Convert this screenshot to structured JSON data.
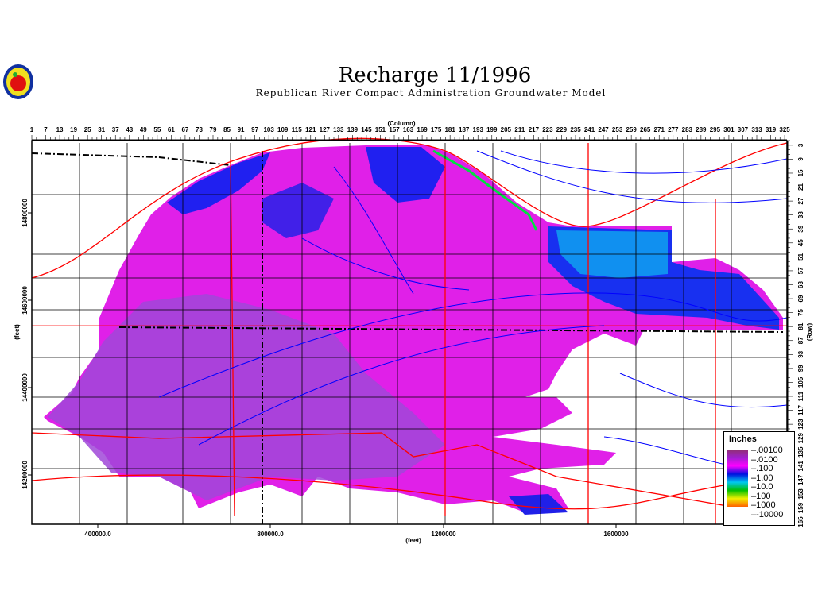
{
  "header": {
    "title": "Recharge 11/1996",
    "subtitle": "Republican River Compact Administration Groundwater Model",
    "logo_icon": "apple-seal-logo"
  },
  "map": {
    "column_axis_title": "(Column)",
    "row_axis_title": "(Row)",
    "x_axis_title": "(feet)",
    "y_axis_title": "(feet)",
    "column_ticks": [
      1,
      7,
      13,
      19,
      25,
      31,
      37,
      43,
      49,
      55,
      61,
      67,
      73,
      79,
      85,
      91,
      97,
      103,
      109,
      115,
      121,
      127,
      133,
      139,
      145,
      151,
      157,
      163,
      169,
      175,
      181,
      187,
      193,
      199,
      205,
      211,
      217,
      223,
      229,
      235,
      241,
      247,
      253,
      259,
      265,
      271,
      277,
      283,
      289,
      295,
      301,
      307,
      313,
      319,
      325
    ],
    "row_ticks": [
      3,
      9,
      15,
      21,
      27,
      33,
      39,
      45,
      51,
      57,
      63,
      69,
      75,
      81,
      87,
      93,
      99,
      105,
      111,
      117,
      123,
      129,
      135,
      141,
      147,
      153,
      159,
      165
    ],
    "x_ticks": [
      "400000.0",
      "800000.0",
      "1200000",
      "1600000"
    ],
    "y_ticks": [
      "14800000",
      "14600000",
      "14400000",
      "14200000"
    ],
    "colors": {
      "magenta": "#e020e8",
      "purple": "#a040d0",
      "blue": "#1020f0",
      "light_blue": "#1090f0",
      "county_lines": "#000000",
      "roads": "#ff0000",
      "rivers": "#0000ff",
      "green": "#00e040"
    }
  },
  "legend": {
    "title": "Inches",
    "labels": [
      ".00100",
      ".0100",
      ".100",
      "1.00",
      "10.0",
      "100",
      "1000",
      "-10000"
    ],
    "colors": [
      "#903070",
      "#a020d0",
      "#ff00ff",
      "#0010e0",
      "#00c8f0",
      "#00c000",
      "#f0f000",
      "#ff6000"
    ]
  }
}
